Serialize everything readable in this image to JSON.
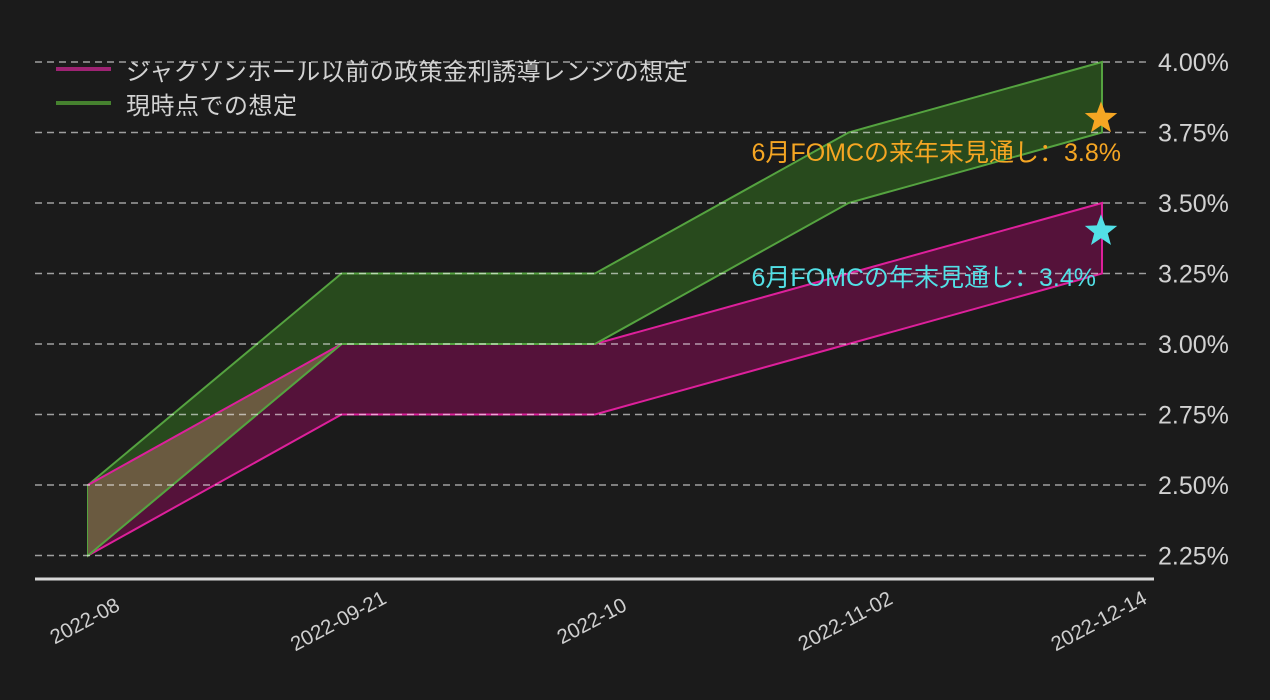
{
  "legend": {
    "items": [
      {
        "label": "ジャクソンホール以前の政策金利誘導レンジの想定",
        "color": "#9e2373"
      },
      {
        "label": "現時点での想定",
        "color": "#46822f"
      }
    ]
  },
  "chart_data": {
    "type": "area",
    "subtype": "arearange",
    "categories": [
      "2022-08",
      "2022-09-21",
      "2022-10",
      "2022-11-02",
      "2022-12-14"
    ],
    "series": [
      {
        "name": "ジャクソンホール以前の政策金利誘導レンジの想定",
        "line_color": "#dd209b",
        "fill_color": "#55123a",
        "low": [
          2.25,
          2.75,
          2.75,
          3.0,
          3.25
        ],
        "high": [
          2.5,
          3.0,
          3.0,
          3.25,
          3.5
        ]
      },
      {
        "name": "現時点での想定",
        "line_color": "#55a340",
        "fill_color": "#284a1d",
        "low": [
          2.25,
          3.0,
          3.0,
          3.5,
          3.75
        ],
        "high": [
          2.5,
          3.25,
          3.25,
          3.75,
          4.0
        ]
      }
    ],
    "overlap_color": "#6a5a40",
    "title": "",
    "xlabel": "",
    "ylabel": "",
    "ylim": [
      2.25,
      4.0
    ],
    "ytick_step": 0.25,
    "yticks": [
      "4.00%",
      "3.75%",
      "3.50%",
      "3.25%",
      "3.00%",
      "2.75%",
      "2.50%",
      "2.25%"
    ],
    "grid": "dashed",
    "legend_position": "top-left",
    "axis_text_color": "#d2d2d2"
  },
  "annotations": [
    {
      "text": "6月FOMCの来年末見通し：3.8%",
      "value": 3.8,
      "category": "2022-12-14",
      "color": "#f5a623",
      "marker": "star"
    },
    {
      "text": "6月FOMCの年末見通し：3.4%",
      "value": 3.4,
      "category": "2022-12-14",
      "color": "#52e0e6",
      "marker": "star"
    }
  ]
}
